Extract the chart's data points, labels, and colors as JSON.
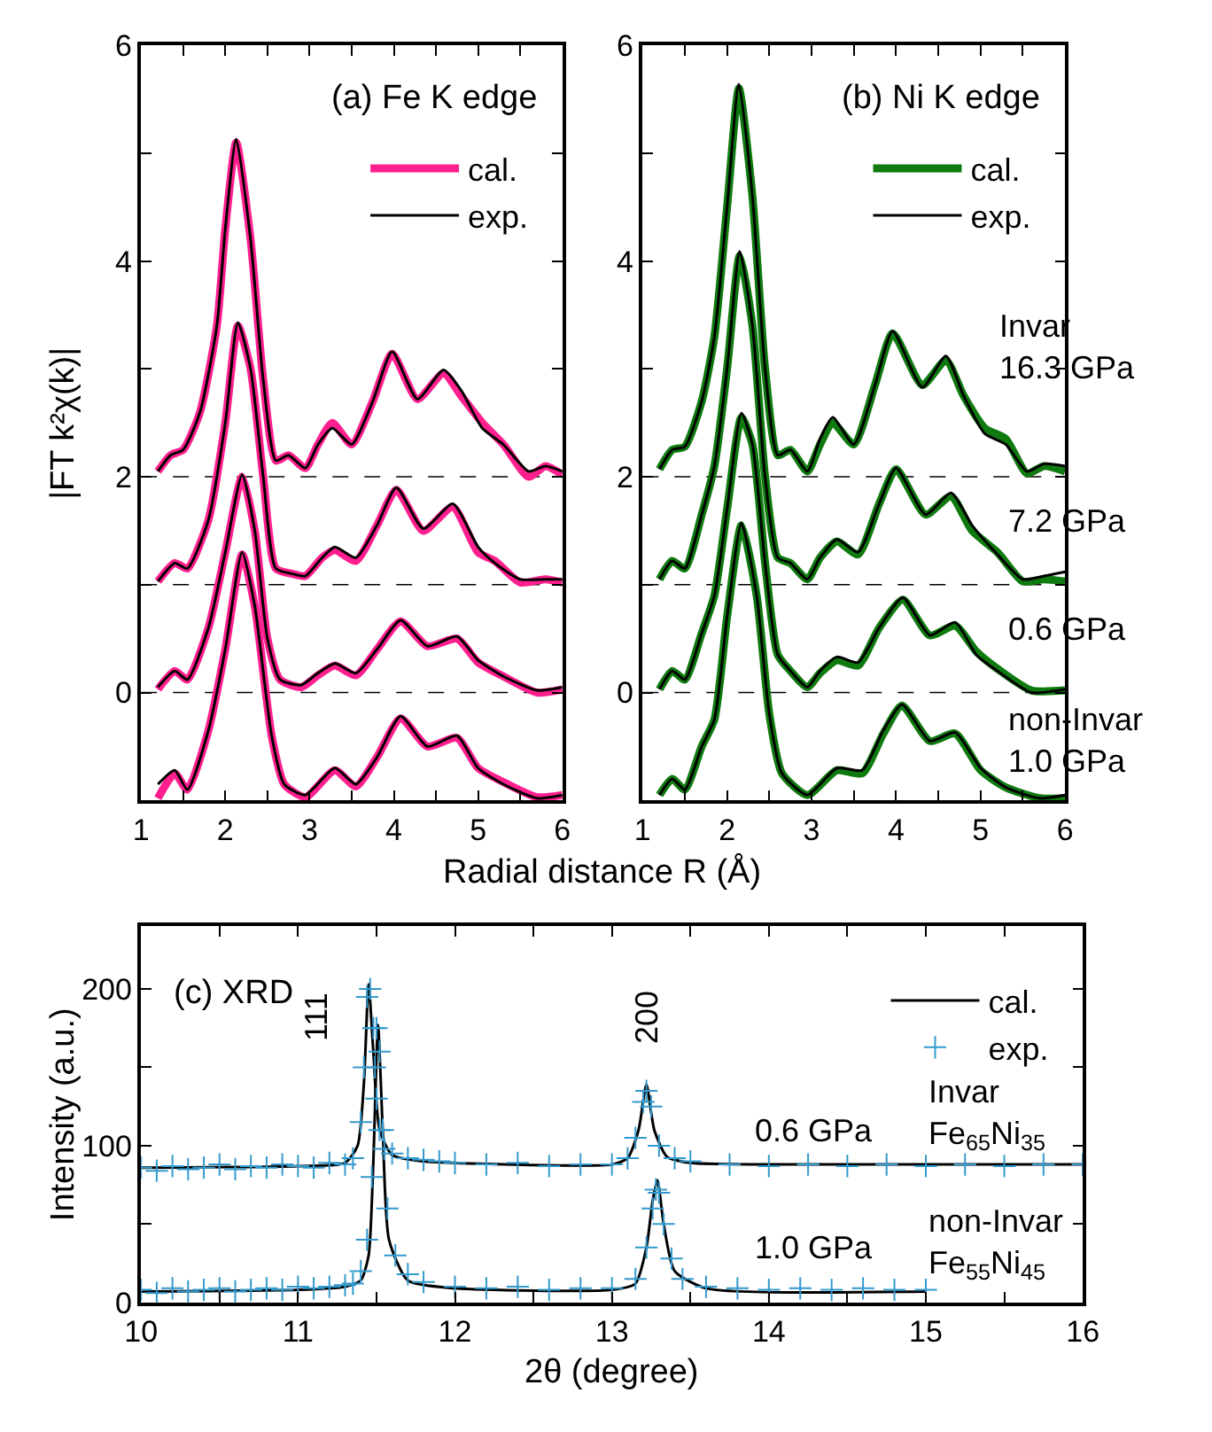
{
  "chart_data": [
    {
      "type": "line",
      "title": "(a) Fe K edge",
      "xlabel": "Radial distance R (Å)",
      "ylabel": "|FT k²χ(k)|",
      "xlim": [
        1,
        6
      ],
      "ylim": [
        -1,
        6
      ],
      "xticks": [
        1,
        {
          "value": 1.5,
          "label": null
        },
        2,
        {
          "value": 2.5,
          "label": null
        },
        3,
        {
          "value": 3.5,
          "label": null
        },
        4,
        {
          "value": 4.5,
          "label": null
        },
        5,
        {
          "value": 5.5,
          "label": null
        },
        6
      ],
      "yticks": [
        0,
        {
          "value": 1,
          "label": null
        },
        2,
        {
          "value": 3,
          "label": null
        },
        4,
        {
          "value": 5,
          "label": null
        },
        6
      ],
      "legend": "top right",
      "grid": false,
      "marker": "none",
      "line_style": "solid",
      "ref_lines": [
        {
          "axis": "y",
          "value": 0,
          "color": "#000000",
          "line_style": "dashed"
        },
        {
          "axis": "y",
          "value": 1,
          "color": "#000000",
          "line_style": "dashed"
        },
        {
          "axis": "y",
          "value": 2,
          "color": "#000000",
          "line_style": "dashed"
        }
      ],
      "series": [
        {
          "name": "cal.",
          "color": "#ff1f8f",
          "x": [
            1.2,
            1.35,
            1.5,
            1.7,
            1.9,
            2.0,
            2.13,
            2.3,
            2.45,
            2.6,
            2.75,
            2.95,
            3.1,
            3.27,
            3.5,
            3.75,
            3.98,
            4.28,
            4.59,
            4.8,
            5.05,
            5.3,
            5.6,
            5.8,
            6.0
          ],
          "values": [
            2.05,
            2.2,
            2.25,
            2.6,
            3.4,
            4.3,
            5.1,
            4.2,
            2.9,
            2.15,
            2.2,
            2.08,
            2.3,
            2.5,
            2.3,
            2.7,
            3.14,
            2.72,
            2.96,
            2.75,
            2.5,
            2.3,
            2.0,
            2.1,
            2.02
          ]
        },
        {
          "name": "exp.",
          "color": "#000000",
          "x": [
            1.2,
            1.35,
            1.5,
            1.7,
            1.9,
            2.0,
            2.13,
            2.3,
            2.45,
            2.6,
            2.75,
            2.95,
            3.1,
            3.27,
            3.5,
            3.75,
            3.98,
            4.28,
            4.59,
            4.8,
            5.05,
            5.3,
            5.6,
            5.8,
            6.0
          ],
          "values": [
            2.05,
            2.2,
            2.25,
            2.6,
            3.4,
            4.3,
            5.13,
            4.2,
            2.9,
            2.15,
            2.2,
            2.08,
            2.3,
            2.45,
            2.3,
            2.7,
            3.16,
            2.72,
            2.99,
            2.8,
            2.45,
            2.3,
            2.05,
            2.1,
            2.05
          ]
        },
        {
          "color": "#ff1f8f",
          "x": [
            1.2,
            1.4,
            1.55,
            1.8,
            2.0,
            2.15,
            2.3,
            2.45,
            2.6,
            2.8,
            2.95,
            3.15,
            3.3,
            3.55,
            3.8,
            4.03,
            4.35,
            4.7,
            5.0,
            5.2,
            5.5,
            5.8,
            6.0
          ],
          "values": [
            1.03,
            1.2,
            1.15,
            1.6,
            2.5,
            3.4,
            3.0,
            2.0,
            1.15,
            1.1,
            1.08,
            1.25,
            1.32,
            1.22,
            1.55,
            1.88,
            1.5,
            1.72,
            1.3,
            1.22,
            1.02,
            1.05,
            1.02
          ]
        },
        {
          "color": "#000000",
          "x": [
            1.2,
            1.4,
            1.55,
            1.8,
            2.0,
            2.15,
            2.3,
            2.45,
            2.6,
            2.8,
            2.95,
            3.15,
            3.3,
            3.55,
            3.8,
            4.03,
            4.35,
            4.7,
            5.0,
            5.2,
            5.5,
            5.8,
            6.0
          ],
          "values": [
            1.03,
            1.2,
            1.15,
            1.6,
            2.5,
            3.43,
            3.0,
            2.0,
            1.15,
            1.1,
            1.08,
            1.25,
            1.35,
            1.25,
            1.55,
            1.9,
            1.52,
            1.75,
            1.35,
            1.2,
            1.05,
            1.05,
            1.05
          ]
        },
        {
          "color": "#ff1f8f",
          "x": [
            1.2,
            1.4,
            1.55,
            1.8,
            2.0,
            2.2,
            2.35,
            2.5,
            2.65,
            2.9,
            3.1,
            3.3,
            3.55,
            3.8,
            4.08,
            4.4,
            4.75,
            5.0,
            5.3,
            5.7,
            6.0
          ],
          "values": [
            0.03,
            0.2,
            0.12,
            0.6,
            1.3,
            2.0,
            1.5,
            0.5,
            0.12,
            0.05,
            0.16,
            0.25,
            0.16,
            0.4,
            0.66,
            0.43,
            0.5,
            0.28,
            0.15,
            0.0,
            0.03
          ]
        },
        {
          "color": "#000000",
          "x": [
            1.2,
            1.4,
            1.55,
            1.8,
            2.0,
            2.2,
            2.35,
            2.5,
            2.65,
            2.9,
            3.1,
            3.3,
            3.55,
            3.8,
            4.08,
            4.4,
            4.75,
            5.0,
            5.3,
            5.7,
            6.0
          ],
          "values": [
            0.05,
            0.2,
            0.12,
            0.6,
            1.3,
            2.02,
            1.5,
            0.5,
            0.12,
            0.07,
            0.18,
            0.27,
            0.18,
            0.4,
            0.67,
            0.43,
            0.52,
            0.3,
            0.15,
            0.02,
            0.05
          ]
        },
        {
          "color": "#ff1f8f",
          "x": [
            1.2,
            1.4,
            1.55,
            1.8,
            2.0,
            2.2,
            2.35,
            2.55,
            2.7,
            2.95,
            3.3,
            3.55,
            3.8,
            4.08,
            4.4,
            4.75,
            5.0,
            5.3,
            5.7,
            6.0
          ],
          "values": [
            -0.98,
            -0.75,
            -0.9,
            -0.35,
            0.4,
            1.28,
            0.8,
            -0.4,
            -0.85,
            -0.97,
            -0.72,
            -0.87,
            -0.6,
            -0.24,
            -0.5,
            -0.42,
            -0.7,
            -0.83,
            -0.97,
            -0.95
          ]
        },
        {
          "color": "#000000",
          "x": [
            1.2,
            1.4,
            1.55,
            1.8,
            2.0,
            2.2,
            2.35,
            2.55,
            2.7,
            2.95,
            3.3,
            3.55,
            3.8,
            4.08,
            4.4,
            4.75,
            5.0,
            5.3,
            5.7,
            6.0
          ],
          "values": [
            -0.85,
            -0.72,
            -0.9,
            -0.35,
            0.4,
            1.3,
            0.8,
            -0.4,
            -0.85,
            -0.95,
            -0.7,
            -0.85,
            -0.6,
            -0.22,
            -0.5,
            -0.4,
            -0.7,
            -0.85,
            -0.98,
            -0.95
          ]
        }
      ]
    },
    {
      "type": "line",
      "title": "(b) Ni K edge",
      "xlim": [
        1,
        6
      ],
      "ylim": [
        -1,
        6
      ],
      "xticks": [
        1,
        {
          "value": 1.5,
          "label": null
        },
        2,
        {
          "value": 2.5,
          "label": null
        },
        3,
        {
          "value": 3.5,
          "label": null
        },
        4,
        {
          "value": 4.5,
          "label": null
        },
        5,
        {
          "value": 5.5,
          "label": null
        },
        6
      ],
      "yticks": [
        0,
        {
          "value": 1,
          "label": null
        },
        2,
        {
          "value": 3,
          "label": null
        },
        4,
        {
          "value": 5,
          "label": null
        },
        6
      ],
      "legend": "top right",
      "grid": false,
      "marker": "none",
      "line_style": "solid",
      "ref_lines": [
        {
          "axis": "y",
          "value": 0,
          "color": "#000000",
          "line_style": "dashed"
        },
        {
          "axis": "y",
          "value": 1,
          "color": "#000000",
          "line_style": "dashed"
        },
        {
          "axis": "y",
          "value": 2,
          "color": "#000000",
          "line_style": "dashed"
        }
      ],
      "annotations": [
        "Invar\n16.3 GPa",
        "7.2 GPa",
        "0.6 GPa",
        "non-Invar\n1.0 GPa"
      ],
      "series": [
        {
          "name": "cal.",
          "color": "#0f7a0f",
          "x": [
            1.2,
            1.35,
            1.5,
            1.7,
            1.85,
            2.0,
            2.14,
            2.3,
            2.45,
            2.6,
            2.75,
            2.95,
            3.1,
            3.25,
            3.5,
            3.75,
            3.96,
            4.31,
            4.59,
            4.8,
            5.05,
            5.3,
            5.55,
            5.75,
            6.0
          ],
          "values": [
            2.07,
            2.25,
            2.28,
            2.7,
            3.3,
            4.5,
            5.6,
            4.6,
            3.0,
            2.2,
            2.25,
            2.05,
            2.3,
            2.5,
            2.3,
            2.85,
            3.33,
            2.85,
            3.08,
            2.75,
            2.45,
            2.35,
            2.03,
            2.1,
            2.05
          ]
        },
        {
          "name": "exp.",
          "color": "#000000",
          "x": [
            1.2,
            1.35,
            1.5,
            1.7,
            1.85,
            2.0,
            2.14,
            2.3,
            2.45,
            2.6,
            2.75,
            2.95,
            3.1,
            3.25,
            3.5,
            3.75,
            3.96,
            4.31,
            4.59,
            4.8,
            5.05,
            5.3,
            5.55,
            5.75,
            6.0
          ],
          "values": [
            2.07,
            2.25,
            2.28,
            2.7,
            3.3,
            4.5,
            5.64,
            4.6,
            3.0,
            2.2,
            2.25,
            2.05,
            2.35,
            2.55,
            2.3,
            2.85,
            3.35,
            2.83,
            3.12,
            2.75,
            2.4,
            2.3,
            2.05,
            2.12,
            2.1
          ]
        },
        {
          "color": "#0f7a0f",
          "x": [
            1.2,
            1.35,
            1.5,
            1.7,
            1.85,
            2.0,
            2.15,
            2.3,
            2.45,
            2.6,
            2.75,
            2.95,
            3.1,
            3.3,
            3.55,
            3.8,
            4.0,
            4.35,
            4.65,
            4.9,
            5.2,
            5.5,
            5.75,
            6.0
          ],
          "values": [
            1.05,
            1.22,
            1.15,
            1.65,
            2.1,
            3.0,
            4.05,
            3.4,
            2.0,
            1.25,
            1.2,
            1.05,
            1.25,
            1.4,
            1.28,
            1.75,
            2.07,
            1.65,
            1.82,
            1.5,
            1.3,
            1.03,
            1.05,
            1.03
          ]
        },
        {
          "color": "#000000",
          "x": [
            1.2,
            1.35,
            1.5,
            1.7,
            1.85,
            2.0,
            2.15,
            2.3,
            2.45,
            2.6,
            2.75,
            2.95,
            3.1,
            3.3,
            3.55,
            3.8,
            4.0,
            4.35,
            4.65,
            4.9,
            5.2,
            5.5,
            5.75,
            6.0
          ],
          "values": [
            1.05,
            1.22,
            1.15,
            1.65,
            2.1,
            3.0,
            4.09,
            3.4,
            2.0,
            1.25,
            1.2,
            1.05,
            1.25,
            1.42,
            1.3,
            1.75,
            2.08,
            1.65,
            1.85,
            1.55,
            1.28,
            1.05,
            1.08,
            1.12
          ]
        },
        {
          "color": "#0f7a0f",
          "x": [
            1.2,
            1.35,
            1.5,
            1.7,
            1.85,
            2.0,
            2.17,
            2.3,
            2.45,
            2.6,
            2.75,
            2.95,
            3.1,
            3.3,
            3.55,
            3.8,
            4.08,
            4.4,
            4.7,
            4.95,
            5.2,
            5.6,
            6.0
          ],
          "values": [
            0.03,
            0.2,
            0.12,
            0.55,
            0.9,
            1.7,
            2.55,
            2.3,
            1.2,
            0.35,
            0.2,
            0.05,
            0.18,
            0.3,
            0.25,
            0.6,
            0.86,
            0.53,
            0.62,
            0.38,
            0.22,
            0.02,
            0.02
          ]
        },
        {
          "color": "#000000",
          "x": [
            1.2,
            1.35,
            1.5,
            1.7,
            1.85,
            2.0,
            2.17,
            2.3,
            2.45,
            2.6,
            2.75,
            2.95,
            3.1,
            3.3,
            3.55,
            3.8,
            4.08,
            4.4,
            4.7,
            4.95,
            5.2,
            5.6,
            6.0
          ],
          "values": [
            0.03,
            0.2,
            0.12,
            0.55,
            0.9,
            1.7,
            2.59,
            2.3,
            1.2,
            0.35,
            0.2,
            0.05,
            0.2,
            0.33,
            0.28,
            0.6,
            0.88,
            0.53,
            0.65,
            0.35,
            0.2,
            0.0,
            0.03
          ]
        },
        {
          "color": "#0f7a0f",
          "x": [
            1.2,
            1.35,
            1.5,
            1.7,
            1.85,
            2.0,
            2.17,
            2.35,
            2.5,
            2.65,
            2.95,
            3.3,
            3.6,
            3.85,
            4.07,
            4.4,
            4.7,
            5.0,
            5.3,
            5.7,
            6.0
          ],
          "values": [
            -0.95,
            -0.8,
            -0.9,
            -0.5,
            -0.25,
            0.7,
            1.55,
            0.9,
            -0.2,
            -0.75,
            -0.95,
            -0.72,
            -0.75,
            -0.38,
            -0.12,
            -0.45,
            -0.38,
            -0.72,
            -0.88,
            -0.98,
            -0.98
          ]
        },
        {
          "color": "#000000",
          "x": [
            1.2,
            1.35,
            1.5,
            1.7,
            1.85,
            2.0,
            2.17,
            2.35,
            2.5,
            2.65,
            2.95,
            3.3,
            3.6,
            3.85,
            4.07,
            4.4,
            4.7,
            5.0,
            5.3,
            5.7,
            6.0
          ],
          "values": [
            -0.95,
            -0.8,
            -0.9,
            -0.5,
            -0.25,
            0.7,
            1.57,
            0.9,
            -0.2,
            -0.75,
            -0.95,
            -0.7,
            -0.72,
            -0.35,
            -0.11,
            -0.45,
            -0.37,
            -0.7,
            -0.88,
            -0.98,
            -0.95
          ]
        }
      ]
    },
    {
      "type": "line",
      "title": "(c) XRD",
      "xlabel": "2θ (degree)",
      "ylabel": "Intensity (a.u.)",
      "xlim": [
        10,
        16
      ],
      "ylim": [
        0,
        240
      ],
      "xticks": [
        10,
        {
          "value": 10.5,
          "label": null
        },
        11,
        {
          "value": 11.5,
          "label": null
        },
        12,
        {
          "value": 12.5,
          "label": null
        },
        13,
        {
          "value": 13.5,
          "label": null
        },
        14,
        {
          "value": 14.5,
          "label": null
        },
        15,
        {
          "value": 15.5,
          "label": null
        },
        16
      ],
      "yticks": [
        0,
        {
          "value": 50,
          "label": null
        },
        100,
        {
          "value": 150,
          "label": null
        },
        200
      ],
      "legend": "top right",
      "grid": false,
      "line_style": "solid",
      "annotations": [
        "111",
        "200",
        "0.6 GPa",
        "Invar\nFe$_{65}$Ni$_{35}$",
        "1.0 GPa",
        "non-Invar\nFe$_{55}$Ni$_{45}$"
      ],
      "series": [
        {
          "name": "cal.",
          "color": "#000000",
          "marker": "none",
          "x": [
            10,
            11,
            11.3,
            11.38,
            11.42,
            11.45,
            11.48,
            11.52,
            11.6,
            11.8,
            12,
            13,
            13.1,
            13.17,
            13.22,
            13.27,
            13.35,
            13.5,
            14,
            16
          ],
          "values": [
            86,
            87,
            89,
            100,
            140,
            203,
            160,
            110,
            94,
            90,
            89,
            88,
            92,
            110,
            139,
            110,
            93,
            89,
            88,
            88
          ]
        },
        {
          "color": "#000000",
          "marker": "none",
          "x": [
            10,
            11,
            11.3,
            11.4,
            11.45,
            11.48,
            11.51,
            11.54,
            11.58,
            11.7,
            12,
            13,
            13.15,
            13.22,
            13.26,
            13.29,
            13.33,
            13.4,
            13.6,
            15
          ],
          "values": [
            7,
            8,
            10,
            14,
            30,
            90,
            177,
            110,
            40,
            14,
            9,
            8,
            12,
            35,
            65,
            78,
            50,
            20,
            9,
            7
          ]
        },
        {
          "name": "exp.",
          "type": "scatter",
          "color": "#3399cc",
          "marker": "cross",
          "x": [
            10,
            10.1,
            10.2,
            10.3,
            10.4,
            10.5,
            10.6,
            10.7,
            10.8,
            10.9,
            11,
            11.1,
            11.2,
            11.3,
            11.35,
            11.4,
            11.42,
            11.44,
            11.46,
            11.48,
            11.5,
            11.52,
            11.55,
            11.6,
            11.7,
            11.8,
            11.9,
            12,
            12.2,
            12.4,
            12.6,
            12.8,
            13,
            13.1,
            13.15,
            13.2,
            13.22,
            13.25,
            13.3,
            13.4,
            13.5,
            13.75,
            14,
            14.25,
            14.5,
            14.75,
            15,
            15.25,
            15.5,
            15.75,
            16
          ],
          "values": [
            86,
            84,
            87,
            85,
            86,
            88,
            85,
            87,
            86,
            88,
            87,
            86,
            89,
            88,
            92,
            115,
            150,
            195,
            200,
            175,
            130,
            110,
            98,
            95,
            92,
            91,
            90,
            89,
            88,
            89,
            87,
            88,
            88,
            92,
            105,
            128,
            135,
            125,
            100,
            92,
            90,
            88,
            87,
            88,
            87,
            88,
            87,
            88,
            87,
            88,
            88
          ]
        },
        {
          "color": "#3399cc",
          "type": "scatter",
          "marker": "cross",
          "x": [
            10,
            10.1,
            10.2,
            10.3,
            10.4,
            10.5,
            10.6,
            10.7,
            10.8,
            10.9,
            11,
            11.1,
            11.2,
            11.3,
            11.35,
            11.4,
            11.44,
            11.47,
            11.49,
            11.5,
            11.52,
            11.54,
            11.57,
            11.62,
            11.7,
            11.8,
            12,
            12.2,
            12.4,
            12.6,
            12.8,
            13,
            13.15,
            13.22,
            13.26,
            13.28,
            13.3,
            13.33,
            13.38,
            13.45,
            13.6,
            13.8,
            14,
            14.2,
            14.4,
            14.6,
            14.8,
            15
          ],
          "values": [
            8,
            6,
            9,
            7,
            8,
            9,
            7,
            8,
            9,
            8,
            10,
            9,
            10,
            11,
            12,
            20,
            40,
            80,
            150,
            175,
            160,
            110,
            60,
            30,
            18,
            13,
            10,
            9,
            10,
            8,
            9,
            9,
            15,
            35,
            60,
            72,
            70,
            50,
            28,
            15,
            10,
            9,
            8,
            9,
            8,
            9,
            8,
            8
          ]
        }
      ]
    }
  ]
}
